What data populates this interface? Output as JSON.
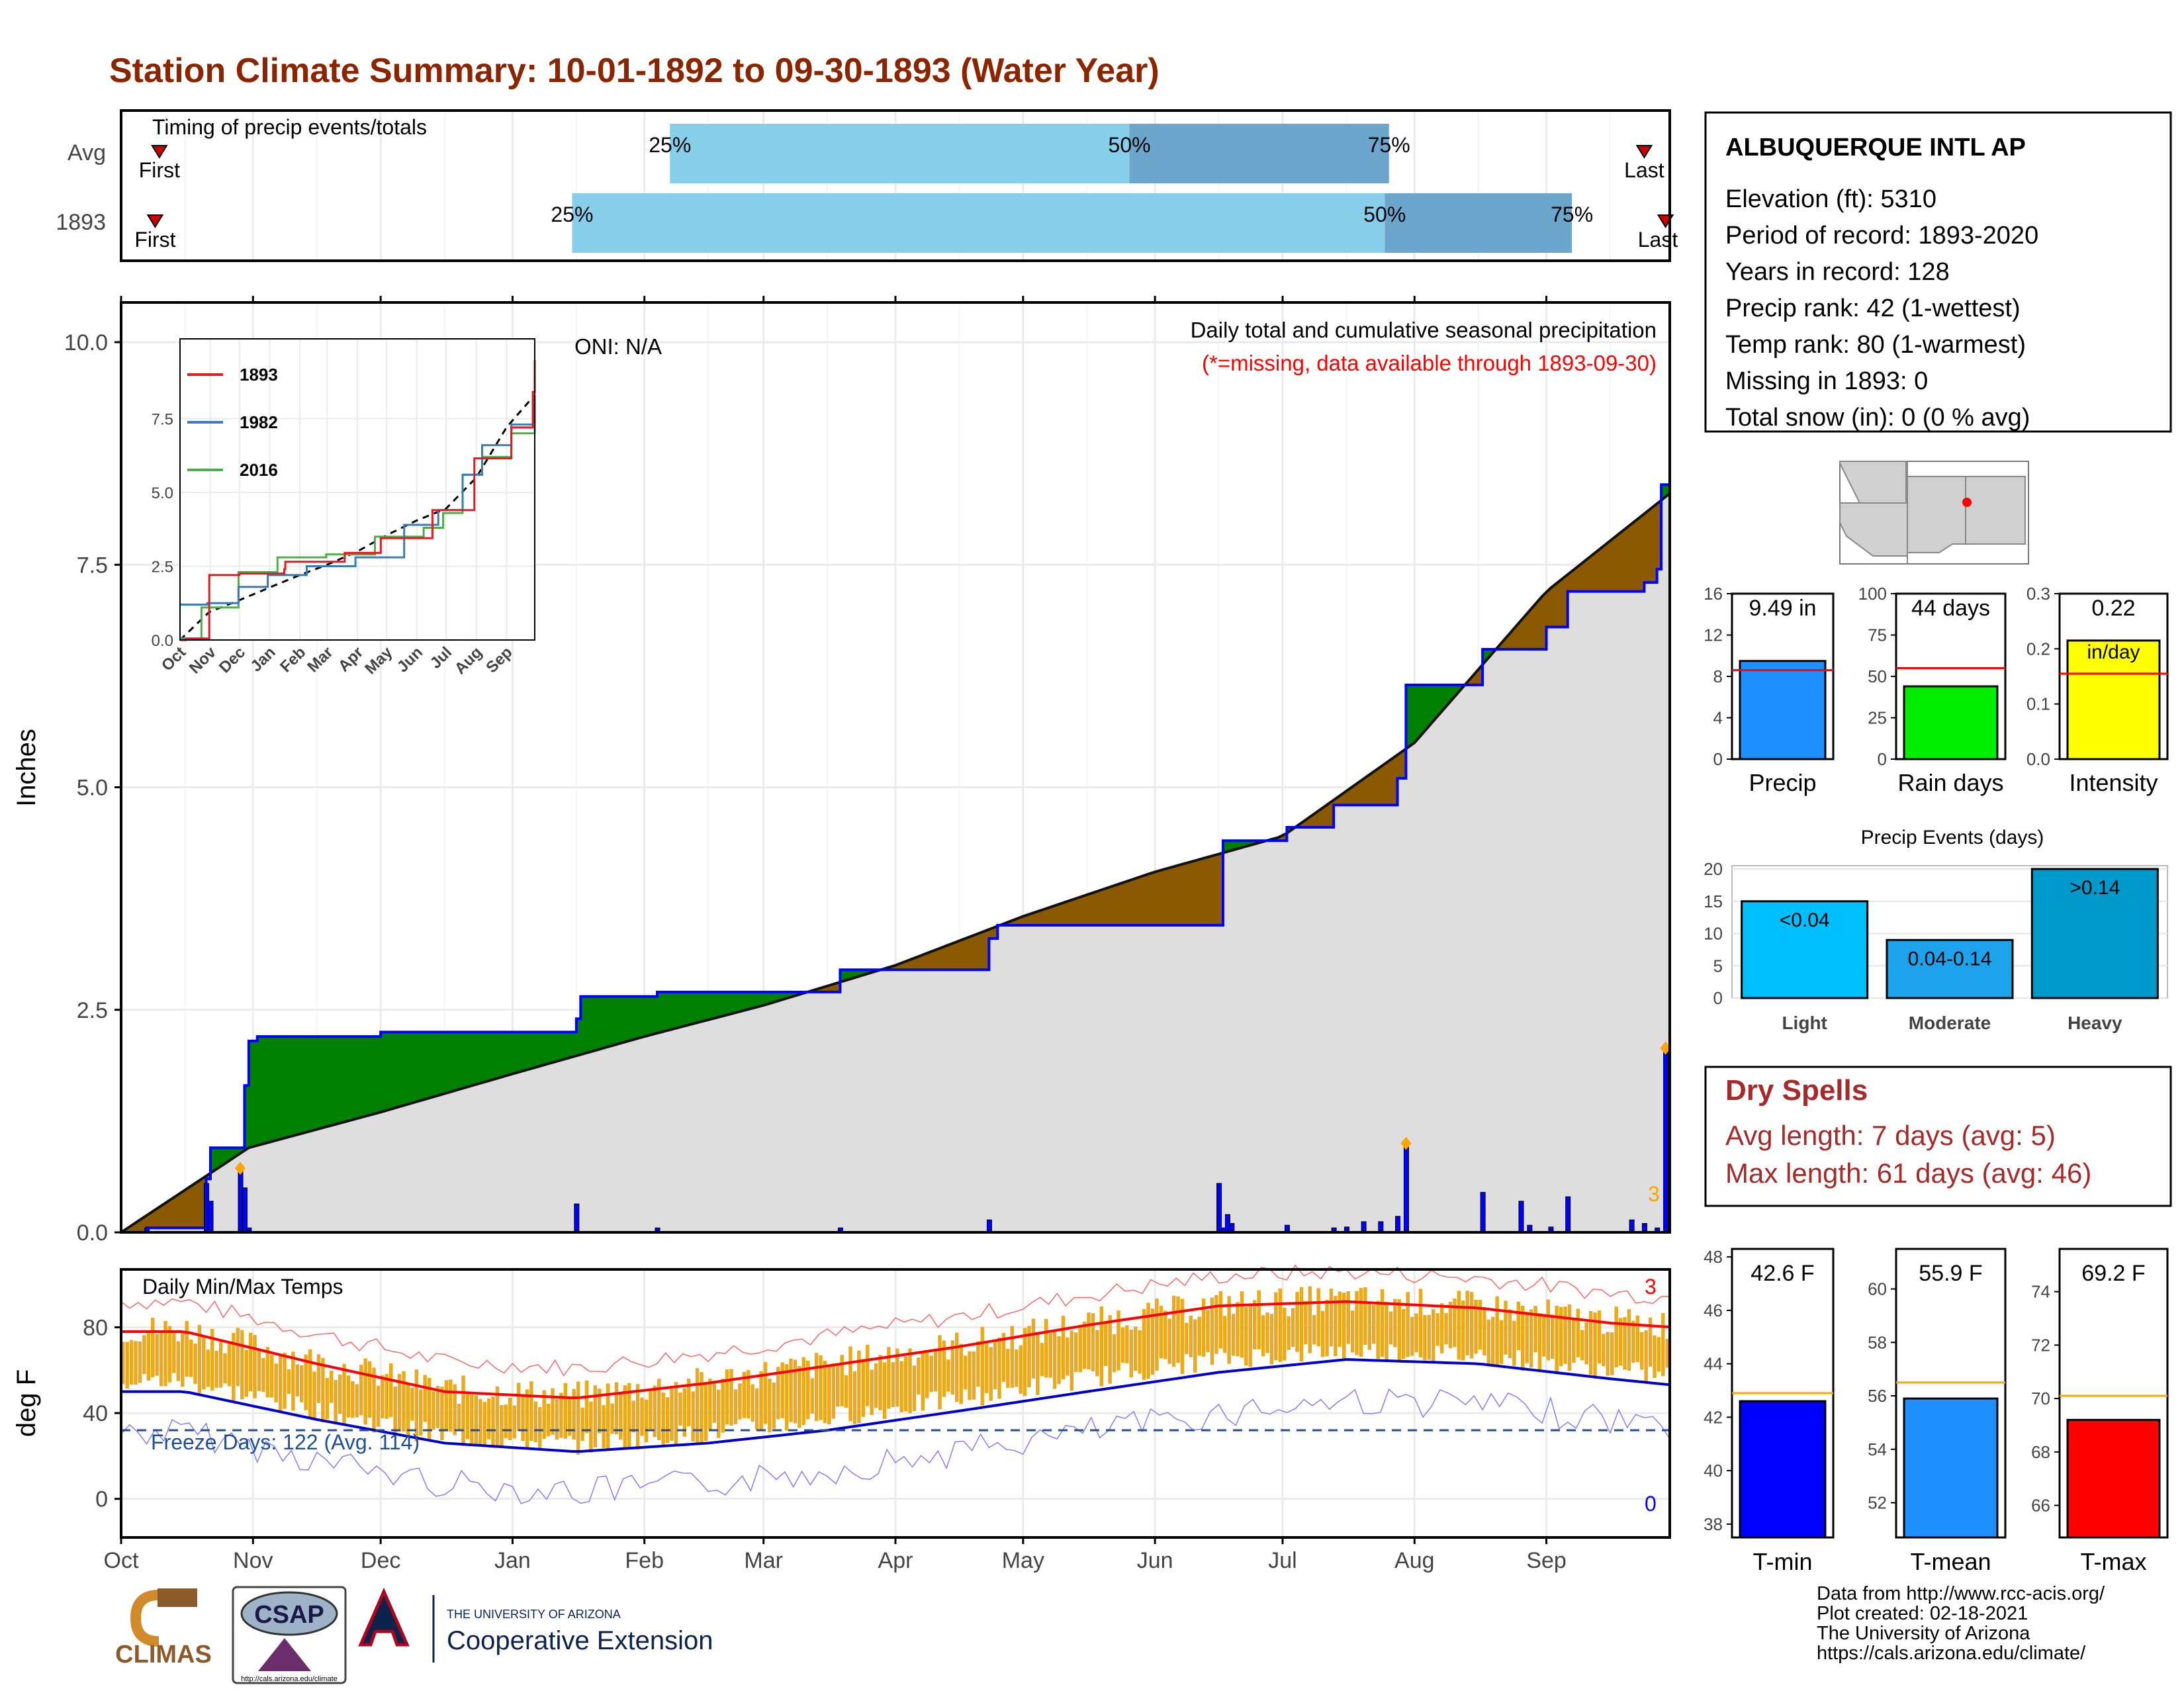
{
  "title": "Station Climate Summary: 10-01-1892 to 09-30-1893 (Water Year)",
  "colors": {
    "title": "#8B2500",
    "brown": "#8B5A00",
    "green": "#008000",
    "blue": "#0000FF",
    "grey_fill": "#DEDEDE",
    "light_blue": "#87CEEB",
    "mid_blue": "#6CA6CD",
    "orange_bars": "#EAAA20",
    "dry_red": "#A52A2A"
  },
  "months": [
    "Oct",
    "Nov",
    "Dec",
    "Jan",
    "Feb",
    "Mar",
    "Apr",
    "May",
    "Jun",
    "Jul",
    "Aug",
    "Sep"
  ],
  "timing": {
    "label": "Timing of precip events/totals",
    "rows": [
      {
        "name": "Avg",
        "first_label": "First",
        "last_label": "Last",
        "first_day": 9,
        "last_day": 358,
        "p25": 129,
        "p50": 237,
        "p75": 298,
        "p25_label": "25%",
        "p50_label": "50%",
        "p75_label": "75%"
      },
      {
        "name": "1893",
        "first_label": "First",
        "last_label": "Last",
        "first_day": 8,
        "last_day": 363,
        "p25": 106,
        "p50": 297,
        "p75": 341,
        "p25_label": "25%",
        "p50_label": "50%",
        "p75_label": "75%"
      }
    ]
  },
  "precip_panel": {
    "ylabel": "Inches",
    "yticks": [
      "0.0",
      "2.5",
      "5.0",
      "7.5",
      "10.0"
    ],
    "caption": "Daily total and cumulative seasonal precipitation",
    "missing_note": "(*=missing, data available through 1893-09-30)",
    "oni": "ONI: N/A",
    "count_label": "3"
  },
  "inset": {
    "legend": [
      "1893",
      "1982",
      "2016"
    ],
    "legend_colors": [
      "#E41A1C",
      "#377EB8",
      "#4DAF4A"
    ],
    "yticks": [
      "0.0",
      "2.5",
      "5.0",
      "7.5"
    ],
    "xticks": [
      "Oct",
      "Nov",
      "Dec",
      "Jan",
      "Feb",
      "Mar",
      "Apr",
      "May",
      "Jun",
      "Jul",
      "Aug",
      "Sep"
    ]
  },
  "temp_panel": {
    "ylabel": "deg F",
    "title": "Daily Min/Max Temps",
    "yticks": [
      "0",
      "40",
      "80"
    ],
    "freeze": "Freeze Days: 122 (Avg. 114)",
    "max_count": "3",
    "min_count": "0"
  },
  "station": {
    "name": "ALBUQUERQUE INTL AP",
    "lines": [
      "Elevation (ft): 5310",
      "Period of record: 1893-2020",
      "Years in record: 128",
      "Precip rank: 42 (1-wettest)",
      "Temp rank: 80 (1-warmest)",
      "Missing in 1893: 0",
      "Total snow (in): 0 (0 % avg)"
    ]
  },
  "bars_top": [
    {
      "label": "Precip",
      "value_label": "9.49 in",
      "value": 9.49,
      "avg": 8.6,
      "ymax": 16,
      "ticks": [
        "0",
        "4",
        "8",
        "12",
        "16"
      ],
      "color": "#1E90FF"
    },
    {
      "label": "Rain days",
      "value_label": "44 days",
      "value": 44,
      "avg": 55,
      "ymax": 100,
      "ticks": [
        "0",
        "25",
        "50",
        "75",
        "100"
      ],
      "color": "#00EE00"
    },
    {
      "label": "Intensity",
      "value_label": "0.22",
      "value_label2": "in/day",
      "value": 0.215,
      "avg": 0.155,
      "ymax": 0.3,
      "ticks": [
        "0.0",
        "0.1",
        "0.2",
        "0.3"
      ],
      "color": "#FFFF00"
    }
  ],
  "events": {
    "title": "Precip Events (days)",
    "yticks": [
      "0",
      "5",
      "10",
      "15",
      "20"
    ],
    "bars": [
      {
        "label": "Light",
        "inner": "<0.04",
        "value": 15,
        "color": "#00BFFF"
      },
      {
        "label": "Moderate",
        "inner": "0.04-0.14",
        "value": 9,
        "color": "#1CA3EC"
      },
      {
        "label": "Heavy",
        "inner": ">0.14",
        "value": 20,
        "color": "#0099CC"
      }
    ]
  },
  "dry_spells": {
    "title": "Dry Spells",
    "avg_line": "Avg length: 7 days (avg: 5)",
    "max_line": "Max length: 61 days (avg: 46)"
  },
  "bars_temp": [
    {
      "label": "T-min",
      "value_label": "42.6 F",
      "value": 42.6,
      "avg": 42.9,
      "ymin": 37.5,
      "ymax": 48.3,
      "ticks": [
        38,
        40,
        42,
        44,
        46,
        48
      ],
      "color": "#0000FF"
    },
    {
      "label": "T-mean",
      "value_label": "55.9 F",
      "value": 55.9,
      "avg": 56.5,
      "ymin": 50.7,
      "ymax": 61.5,
      "ticks": [
        52,
        54,
        56,
        58,
        60
      ],
      "color": "#1E90FF"
    },
    {
      "label": "T-max",
      "value_label": "69.2 F",
      "value": 69.2,
      "avg": 70.1,
      "ymin": 64.8,
      "ymax": 75.6,
      "ticks": [
        66,
        68,
        70,
        72,
        74
      ],
      "color": "#FF0000"
    }
  ],
  "footer": {
    "lines": [
      "Data from http://www.rcc-acis.org/",
      "Plot created: 02-18-2021",
      "The University of Arizona",
      "https://cals.arizona.edu/climate/"
    ],
    "logos": [
      "CLIMAS",
      "CSAP",
      "THE UNIVERSITY OF ARIZONA",
      "Cooperative Extension"
    ],
    "csap_url": "http://cals.arizona.edu/climate"
  },
  "chart_data": [
    {
      "type": "area",
      "title": "Daily total and cumulative seasonal precipitation",
      "ylabel": "Inches",
      "ylim": [
        0,
        10
      ],
      "x_days": [
        0,
        30,
        61,
        92,
        123,
        151,
        182,
        212,
        243,
        273,
        304,
        335,
        364
      ],
      "cum_1893": [
        0,
        2.2,
        2.25,
        2.65,
        2.7,
        2.7,
        2.95,
        3.45,
        3.45,
        4.4,
        6.15,
        7.2,
        9.49
      ],
      "cum_avg": [
        0,
        0.95,
        1.35,
        1.78,
        2.2,
        2.55,
        3.0,
        3.55,
        4.05,
        4.45,
        5.5,
        7.2,
        8.3
      ],
      "daily_peaks": [
        [
          20,
          0.55
        ],
        [
          28,
          0.72
        ],
        [
          107,
          0.32
        ],
        [
          204,
          0.14
        ],
        [
          258,
          0.55
        ],
        [
          302,
          1.0
        ],
        [
          363,
          2.07
        ]
      ]
    },
    {
      "type": "line",
      "title": "Daily Min/Max Temps",
      "ylabel": "deg F",
      "ylim": [
        -18,
        107
      ],
      "months": [
        "Oct",
        "Nov",
        "Dec",
        "Jan",
        "Feb",
        "Mar",
        "Apr",
        "May",
        "Jun",
        "Jul",
        "Aug",
        "Sep"
      ],
      "avg_max": [
        78,
        63,
        50,
        47,
        54,
        62,
        71,
        81,
        90,
        92,
        89,
        82
      ],
      "avg_min": [
        50,
        37,
        26,
        22,
        26,
        32,
        41,
        50,
        59,
        65,
        63,
        56
      ],
      "freeze_line": 32
    },
    {
      "type": "bar",
      "categories": [
        "Light",
        "Moderate",
        "Heavy"
      ],
      "values": [
        15,
        9,
        20
      ],
      "title": "Precip Events (days)"
    }
  ]
}
